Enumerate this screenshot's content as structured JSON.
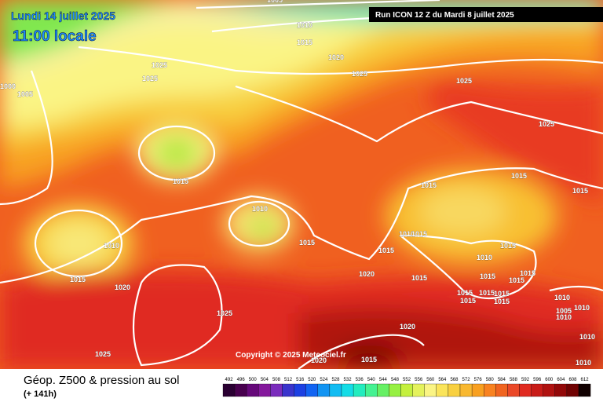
{
  "header": {
    "date": "Lundi 14 juillet 2025",
    "time": "11:00 locale",
    "run": "Run ICON 12 Z du Mardi 8 juillet 2025"
  },
  "copyright": "Copyright © 2025 Meteociel.fr",
  "footer": {
    "title": "Géop. Z500 & pression au sol",
    "subtitle": "(+ 141h)"
  },
  "isobar_labels": [
    1005,
    1010,
    1015,
    1020,
    1025,
    1025,
    1025,
    1000,
    1005,
    1015,
    1010,
    1010,
    1015,
    1020,
    1015,
    1015,
    1015,
    1015,
    1025,
    1025,
    1010,
    1015,
    1015,
    1020,
    1015,
    1010,
    1015,
    1015,
    1015,
    1015,
    1015,
    1015,
    1015,
    1015,
    1015,
    1010,
    1010,
    1005,
    1010,
    1025,
    1025,
    1020,
    1020,
    1015,
    1010,
    1010
  ],
  "legend": {
    "values": [
      492,
      496,
      500,
      504,
      508,
      512,
      516,
      520,
      524,
      528,
      532,
      536,
      540,
      544,
      548,
      552,
      556,
      560,
      564,
      568,
      572,
      576,
      580,
      584,
      588,
      592,
      596,
      600,
      604,
      608,
      612
    ],
    "colors": [
      "#2a0032",
      "#48004e",
      "#66087a",
      "#84189c",
      "#7a2cbc",
      "#3a34cc",
      "#1c40e2",
      "#1264f2",
      "#1294f2",
      "#12bcf2",
      "#14dce6",
      "#22ecbe",
      "#44f292",
      "#66f064",
      "#96f042",
      "#c4f03e",
      "#e4f25c",
      "#faf484",
      "#fae45a",
      "#f8d040",
      "#f8b830",
      "#f8a020",
      "#f88220",
      "#f06420",
      "#ea4828",
      "#e02a20",
      "#c81c18",
      "#b01210",
      "#920808",
      "#700202",
      "#100000"
    ]
  }
}
